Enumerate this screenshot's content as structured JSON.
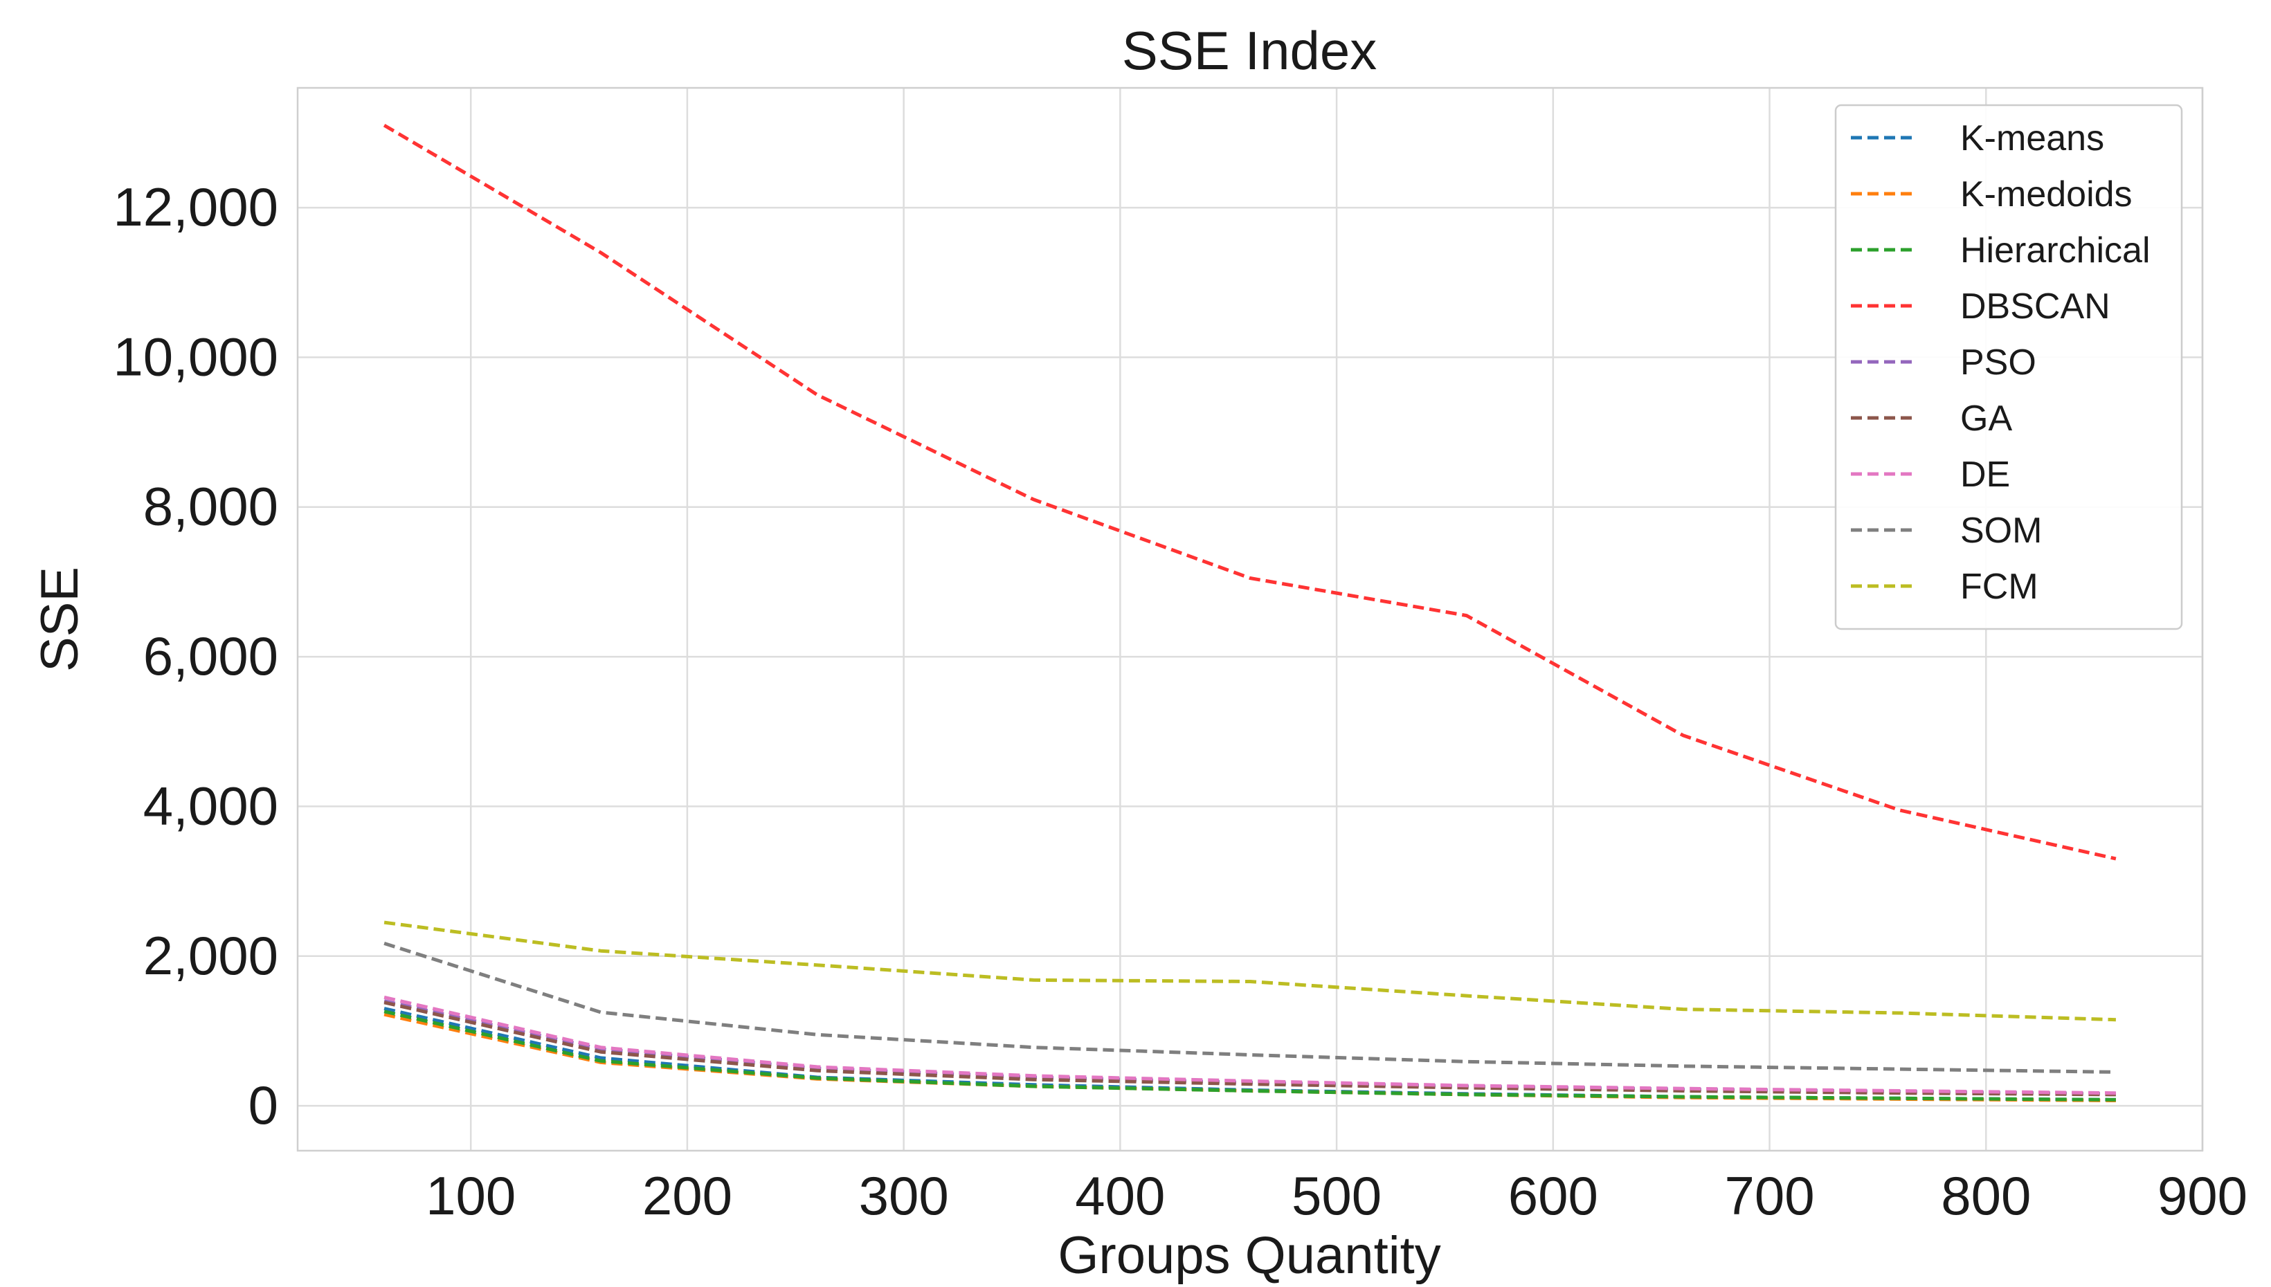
{
  "chart_data": {
    "type": "line",
    "title": "SSE Index",
    "xlabel": "Groups Quantity",
    "ylabel": "SSE",
    "xlim": [
      20,
      900
    ],
    "ylim": [
      -600,
      13600
    ],
    "xticks": [
      100,
      200,
      300,
      400,
      500,
      600,
      700,
      800,
      900
    ],
    "yticks": [
      0,
      2000,
      4000,
      6000,
      8000,
      10000,
      12000
    ],
    "ytick_labels": [
      "0",
      "2,000",
      "4,000",
      "6,000",
      "8,000",
      "10,000",
      "12,000"
    ],
    "grid": true,
    "legend_position": "top-right",
    "x": [
      60,
      160,
      260,
      360,
      460,
      560,
      660,
      760,
      860
    ],
    "series": [
      {
        "name": "K-means",
        "color": "#1f77b4",
        "values": [
          1300,
          640,
          380,
          280,
          210,
          160,
          120,
          100,
          80
        ]
      },
      {
        "name": "K-medoids",
        "color": "#ff7f0e",
        "values": [
          1220,
          580,
          360,
          260,
          200,
          150,
          110,
          90,
          70
        ]
      },
      {
        "name": "Hierarchical",
        "color": "#2ca02c",
        "values": [
          1260,
          600,
          370,
          260,
          200,
          150,
          120,
          100,
          80
        ]
      },
      {
        "name": "DBSCAN",
        "color": "#ff3333",
        "values": [
          13100,
          11400,
          9500,
          8100,
          7050,
          6550,
          4950,
          3950,
          3300
        ]
      },
      {
        "name": "PSO",
        "color": "#9467bd",
        "values": [
          1400,
          760,
          500,
          380,
          310,
          260,
          220,
          190,
          160
        ]
      },
      {
        "name": "GA",
        "color": "#8c564b",
        "values": [
          1380,
          720,
          470,
          350,
          290,
          240,
          200,
          170,
          150
        ]
      },
      {
        "name": "DE",
        "color": "#e377c2",
        "values": [
          1450,
          780,
          520,
          400,
          330,
          270,
          230,
          200,
          170
        ]
      },
      {
        "name": "SOM",
        "color": "#7f7f7f",
        "values": [
          2170,
          1250,
          950,
          780,
          680,
          590,
          530,
          490,
          450
        ]
      },
      {
        "name": "FCM",
        "color": "#bcbd22",
        "values": [
          2450,
          2070,
          1880,
          1680,
          1660,
          1470,
          1290,
          1240,
          1150
        ]
      }
    ]
  }
}
